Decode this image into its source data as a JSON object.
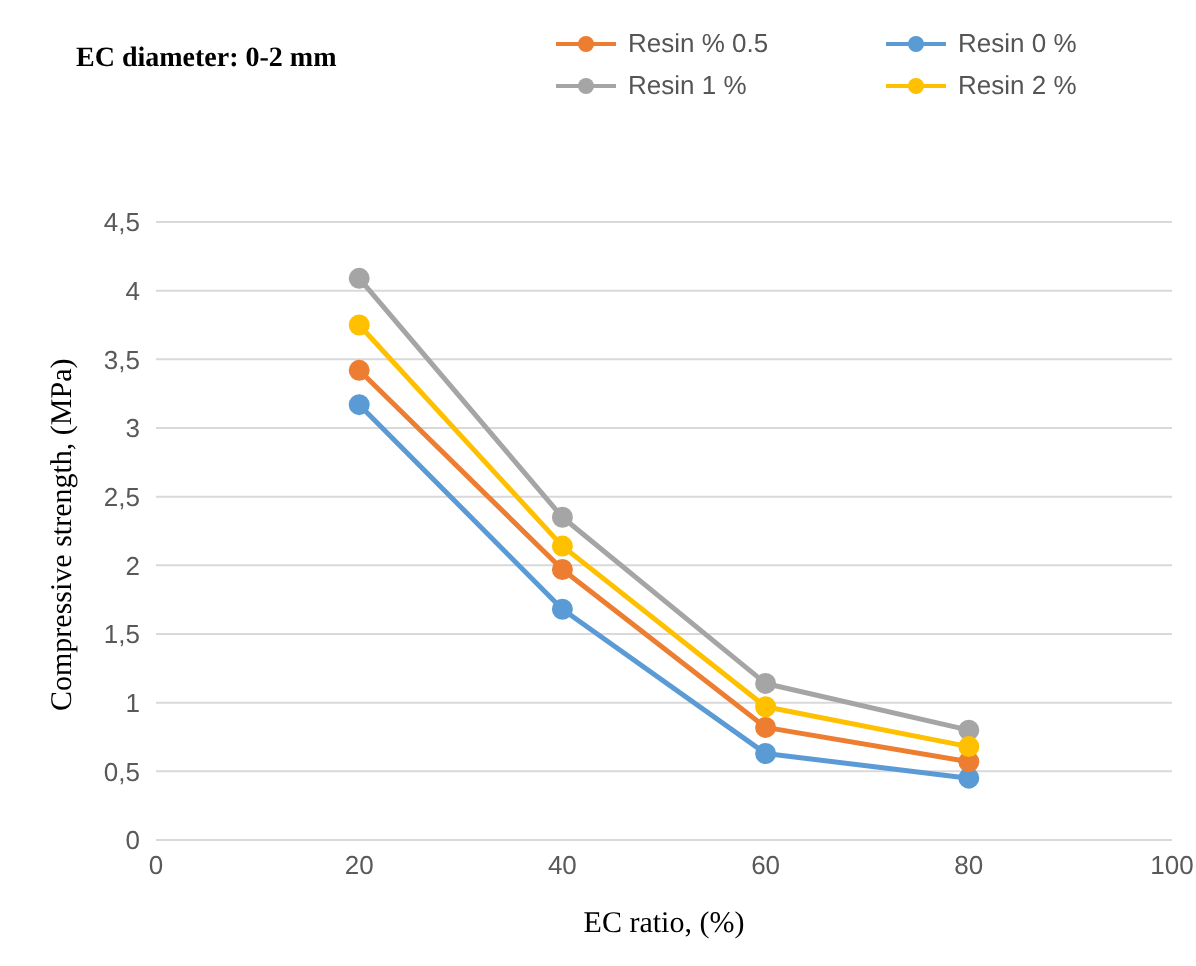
{
  "chart_data": {
    "type": "line",
    "title": "EC diameter: 0-2 mm",
    "xlabel": "EC ratio, (%)",
    "ylabel": "Compressive strength, (MPa)",
    "x": [
      20,
      40,
      60,
      80
    ],
    "series": [
      {
        "name": "Resin 0 %",
        "color": "#5b9bd5",
        "values": [
          3.17,
          1.68,
          0.63,
          0.45
        ]
      },
      {
        "name": "Resin 1 %",
        "color": "#a5a5a5",
        "values": [
          4.09,
          2.35,
          1.14,
          0.8
        ]
      },
      {
        "name": "Resin % 0.5",
        "color": "#ed7d31",
        "values": [
          3.42,
          1.97,
          0.82,
          0.57
        ]
      },
      {
        "name": "Resin 2 %",
        "color": "#ffc000",
        "values": [
          3.75,
          2.14,
          0.97,
          0.68
        ]
      }
    ],
    "xlim": [
      0,
      100
    ],
    "xticks": [
      0,
      20,
      40,
      60,
      80,
      100
    ],
    "ylim": [
      0,
      4.5
    ],
    "yticks": [
      0,
      {
        "value": 0.5,
        "label": "0,5"
      },
      1,
      {
        "value": 1.5,
        "label": "1,5"
      },
      2,
      {
        "value": 2.5,
        "label": "2,5"
      },
      3,
      {
        "value": 3.5,
        "label": "3,5"
      },
      4,
      {
        "value": 4.5,
        "label": "4,5"
      }
    ],
    "grid": "y",
    "legend": "top right",
    "marker": "circle",
    "line_style": "solid"
  }
}
